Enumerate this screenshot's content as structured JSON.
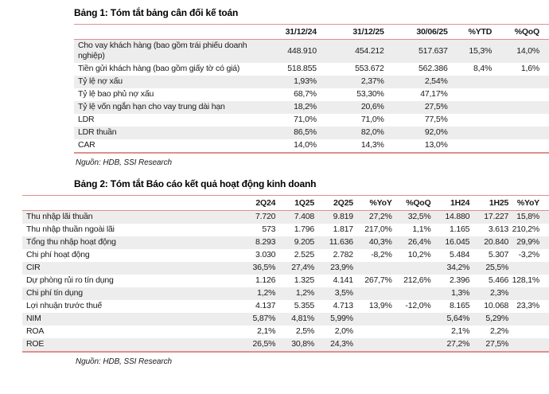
{
  "table1": {
    "title": "Bảng 1: Tóm tắt bảng cân đối kế toán",
    "source": "Nguồn: HDB, SSI Research",
    "columns": [
      "",
      "31/12/24",
      "31/12/25",
      "30/06/25",
      "%YTD",
      "%QoQ"
    ],
    "rows": [
      [
        "Cho vay khách hàng (bao gồm trái phiếu doanh nghiệp)",
        "448.910",
        "454.212",
        "517.637",
        "15,3%",
        "14,0%"
      ],
      [
        "Tiền gửi khách hàng (bao gồm giấy tờ có giá)",
        "518.855",
        "553.672",
        "562.386",
        "8,4%",
        "1,6%"
      ],
      [
        "Tỷ lệ nợ xấu",
        "1,93%",
        "2,37%",
        "2,54%",
        "",
        ""
      ],
      [
        "Tỷ lệ bao phủ nợ xấu",
        "68,7%",
        "53,30%",
        "47,17%",
        "",
        ""
      ],
      [
        "Tỷ lệ vốn ngắn hạn cho vay trung dài hạn",
        "18,2%",
        "20,6%",
        "27,5%",
        "",
        ""
      ],
      [
        "LDR",
        "71,0%",
        "71,0%",
        "77,5%",
        "",
        ""
      ],
      [
        "LDR thuần",
        "86,5%",
        "82,0%",
        "92,0%",
        "",
        ""
      ],
      [
        "CAR",
        "14,0%",
        "14,3%",
        "13,0%",
        "",
        ""
      ]
    ]
  },
  "table2": {
    "title": "Bảng 2: Tóm tắt Báo cáo kết quả hoạt động kinh doanh",
    "source": "Nguồn: HDB, SSI Research",
    "columns": [
      "",
      "2Q24",
      "1Q25",
      "2Q25",
      "%YoY",
      "%QoQ",
      "1H24",
      "1H25",
      "%YoY"
    ],
    "rows": [
      [
        "Thu nhập lãi thuần",
        "7.720",
        "7.408",
        "9.819",
        "27,2%",
        "32,5%",
        "14.880",
        "17.227",
        "15,8%"
      ],
      [
        "Thu nhập thuần ngoài lãi",
        "573",
        "1.796",
        "1.817",
        "217,0%",
        "1,1%",
        "1.165",
        "3.613",
        "210,2%"
      ],
      [
        "Tổng thu nhập hoạt động",
        "8.293",
        "9.205",
        "11.636",
        "40,3%",
        "26,4%",
        "16.045",
        "20.840",
        "29,9%"
      ],
      [
        "Chi phí hoạt động",
        "3.030",
        "2.525",
        "2.782",
        "-8,2%",
        "10,2%",
        "5.484",
        "5.307",
        "-3,2%"
      ],
      [
        "CIR",
        "36,5%",
        "27,4%",
        "23,9%",
        "",
        "",
        "34,2%",
        "25,5%",
        ""
      ],
      [
        "Dự phòng rủi ro tín dụng",
        "1.126",
        "1.325",
        "4.141",
        "267,7%",
        "212,6%",
        "2.396",
        "5.466",
        "128,1%"
      ],
      [
        "Chi phí tín dụng",
        "1,2%",
        "1,2%",
        "3,5%",
        "",
        "",
        "1,3%",
        "2,3%",
        ""
      ],
      [
        "Lợi nhuận trước thuế",
        "4.137",
        "5.355",
        "4.713",
        "13,9%",
        "-12,0%",
        "8.165",
        "10.068",
        "23,3%"
      ],
      [
        "NIM",
        "5,87%",
        "4,81%",
        "5,99%",
        "",
        "",
        "5,64%",
        "5,29%",
        ""
      ],
      [
        "ROA",
        "2,1%",
        "2,5%",
        "2,0%",
        "",
        "",
        "2,1%",
        "2,2%",
        ""
      ],
      [
        "ROE",
        "26,5%",
        "30,8%",
        "24,3%",
        "",
        "",
        "27,2%",
        "27,5%",
        ""
      ]
    ]
  },
  "colors": {
    "table_border": "#e08f8f",
    "row_stripe": "#ededee",
    "text": "#1a1a1a"
  }
}
